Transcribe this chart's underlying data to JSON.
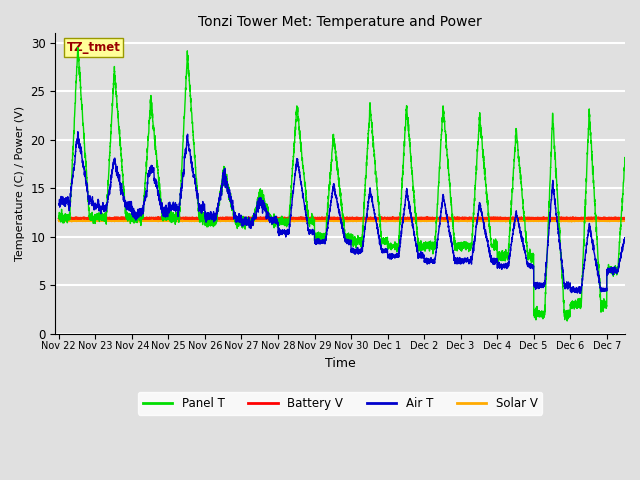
{
  "title": "Tonzi Tower Met: Temperature and Power",
  "xlabel": "Time",
  "ylabel": "Temperature (C) / Power (V)",
  "ylim": [
    0,
    31
  ],
  "yticks": [
    0,
    5,
    10,
    15,
    20,
    25,
    30
  ],
  "xtick_labels": [
    "Nov 22",
    "Nov 23",
    "Nov 24",
    "Nov 25",
    "Nov 26",
    "Nov 27",
    "Nov 28",
    "Nov 29",
    "Nov 30",
    "Dec 1",
    "Dec 2",
    "Dec 3",
    "Dec 4",
    "Dec 5",
    "Dec 6",
    "Dec 7"
  ],
  "legend_labels": [
    "Panel T",
    "Battery V",
    "Air T",
    "Solar V"
  ],
  "legend_colors": [
    "#00dd00",
    "#ff0000",
    "#0000cc",
    "#ffaa00"
  ],
  "panel_T_color": "#00dd00",
  "battery_V_color": "#ff2200",
  "air_T_color": "#0000cc",
  "solar_V_color": "#ffaa00",
  "annotation_text": "TZ_tmet",
  "annotation_bg": "#ffff99",
  "annotation_fg": "#990000",
  "background_color": "#e0e0e0",
  "plot_bg_color": "#e0e0e0",
  "grid_color": "#ffffff",
  "line_width": 1.0,
  "panel_peaks": [
    29.5,
    27.2,
    24.0,
    28.8,
    17.5,
    15.0,
    23.5,
    20.5,
    23.5,
    23.5,
    23.5,
    22.5,
    21.0,
    22.5,
    23.0,
    19.0
  ],
  "air_peaks": [
    22.0,
    19.0,
    18.5,
    21.5,
    18.0,
    14.5,
    19.5,
    16.5,
    16.0,
    16.0,
    15.5,
    14.5,
    13.5,
    17.5,
    12.5,
    11.0
  ],
  "air_nights": [
    13.5,
    13.0,
    12.5,
    13.0,
    12.0,
    11.5,
    10.5,
    9.5,
    8.5,
    8.0,
    7.5,
    7.5,
    7.0,
    5.0,
    4.5,
    6.5
  ],
  "panel_nights": [
    12.0,
    12.0,
    12.0,
    12.0,
    11.5,
    11.5,
    11.5,
    10.0,
    9.5,
    9.0,
    9.0,
    9.0,
    8.0,
    2.0,
    3.0,
    6.5
  ],
  "cloudy_days": [
    4,
    5
  ],
  "battery_level": 11.9,
  "solar_level": 11.65
}
